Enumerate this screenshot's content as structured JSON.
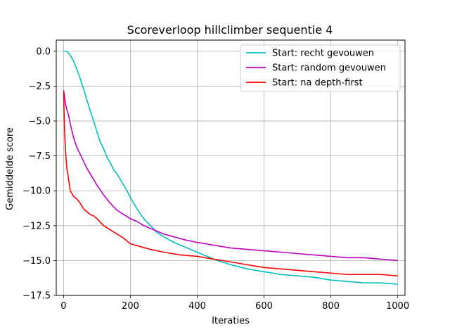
{
  "chart_data": {
    "type": "line",
    "title": "Scoreverloop hillclimber sequentie 4",
    "xlabel": "Iteraties",
    "ylabel": "Gemiddelde score",
    "xlim": [
      -22,
      1022
    ],
    "ylim": [
      -17.5,
      0.8
    ],
    "xticks": [
      0,
      200,
      400,
      600,
      800,
      1000
    ],
    "xtick_labels": [
      "0",
      "200",
      "400",
      "600",
      "800",
      "1000"
    ],
    "yticks": [
      0.0,
      -2.5,
      -5.0,
      -7.5,
      -10.0,
      -12.5,
      -15.0,
      -17.5
    ],
    "ytick_labels": [
      "0.0",
      "−2.5",
      "−5.0",
      "−7.5",
      "−10.0",
      "−12.5",
      "−15.0",
      "−17.5"
    ],
    "grid": true,
    "legend_position": "top-right",
    "series": [
      {
        "name": "Start: recht gevouwen",
        "color": "#00bfbf",
        "x": [
          0,
          10,
          20,
          30,
          40,
          50,
          60,
          70,
          80,
          90,
          100,
          110,
          120,
          130,
          140,
          150,
          160,
          170,
          180,
          190,
          200,
          220,
          240,
          260,
          280,
          300,
          330,
          360,
          400,
          430,
          460,
          500,
          550,
          600,
          650,
          700,
          750,
          800,
          850,
          900,
          950,
          1000
        ],
        "y": [
          0.0,
          0.0,
          -0.3,
          -0.7,
          -1.3,
          -2.0,
          -2.7,
          -3.5,
          -4.3,
          -5.0,
          -5.8,
          -6.5,
          -7.0,
          -7.6,
          -8.0,
          -8.5,
          -8.8,
          -9.2,
          -9.6,
          -10.0,
          -10.5,
          -11.3,
          -12.0,
          -12.5,
          -13.0,
          -13.3,
          -13.7,
          -14.0,
          -14.4,
          -14.7,
          -15.0,
          -15.3,
          -15.6,
          -15.8,
          -16.0,
          -16.1,
          -16.2,
          -16.4,
          -16.5,
          -16.6,
          -16.6,
          -16.7
        ]
      },
      {
        "name": "Start: random gevouwen",
        "color": "#bf00bf",
        "x": [
          0,
          3,
          6,
          10,
          15,
          20,
          30,
          40,
          50,
          60,
          70,
          80,
          90,
          100,
          120,
          140,
          160,
          180,
          200,
          220,
          240,
          260,
          280,
          300,
          330,
          360,
          400,
          450,
          500,
          550,
          600,
          650,
          700,
          750,
          800,
          850,
          900,
          950,
          1000
        ],
        "y": [
          -2.8,
          -3.3,
          -3.8,
          -4.2,
          -4.6,
          -5.2,
          -6.2,
          -6.9,
          -7.4,
          -7.9,
          -8.4,
          -8.8,
          -9.2,
          -9.6,
          -10.3,
          -10.9,
          -11.4,
          -11.7,
          -12.0,
          -12.2,
          -12.5,
          -12.7,
          -12.9,
          -13.1,
          -13.3,
          -13.5,
          -13.7,
          -13.9,
          -14.1,
          -14.2,
          -14.3,
          -14.4,
          -14.5,
          -14.6,
          -14.7,
          -14.8,
          -14.8,
          -14.9,
          -15.0
        ]
      },
      {
        "name": "Start: na depth-first",
        "color": "#ff0000",
        "x": [
          0,
          2,
          4,
          6,
          8,
          10,
          15,
          20,
          30,
          40,
          50,
          60,
          70,
          80,
          90,
          100,
          120,
          140,
          160,
          180,
          200,
          230,
          260,
          300,
          350,
          400,
          450,
          500,
          550,
          600,
          650,
          700,
          750,
          800,
          850,
          900,
          950,
          1000
        ],
        "y": [
          -2.9,
          -5.0,
          -6.3,
          -7.2,
          -7.9,
          -8.4,
          -9.2,
          -10.0,
          -10.4,
          -10.6,
          -10.9,
          -11.3,
          -11.5,
          -11.7,
          -11.8,
          -12.0,
          -12.5,
          -12.8,
          -13.1,
          -13.4,
          -13.8,
          -14.0,
          -14.2,
          -14.4,
          -14.6,
          -14.7,
          -14.9,
          -15.1,
          -15.3,
          -15.5,
          -15.6,
          -15.7,
          -15.8,
          -15.9,
          -16.0,
          -16.0,
          -16.0,
          -16.1
        ]
      }
    ]
  }
}
